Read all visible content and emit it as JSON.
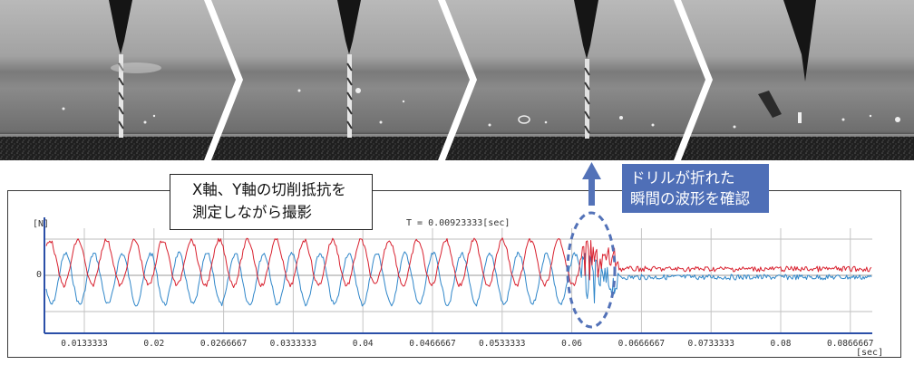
{
  "callout_measure": {
    "line1": "X軸、Y軸の切削抵抗を",
    "line2": "測定しながら撮影"
  },
  "callout_break": {
    "line1": "ドリルが折れた",
    "line2": "瞬間の波形を確認"
  },
  "graph": {
    "y_unit": "[N]",
    "y_zero_label": "0",
    "cursor_readout": "T = 0.00923333[sec]",
    "x_unit": "[sec]",
    "x_ticks": [
      "0.0133333",
      "0.02",
      "0.0266667",
      "0.0333333",
      "0.04",
      "0.0466667",
      "0.0533333",
      "0.06",
      "0.0666667",
      "0.0733333",
      "0.08",
      "0.0866667"
    ]
  },
  "colors": {
    "x_force": "#d8202e",
    "y_force": "#2f86c9",
    "highlight": "#5372b8"
  }
}
